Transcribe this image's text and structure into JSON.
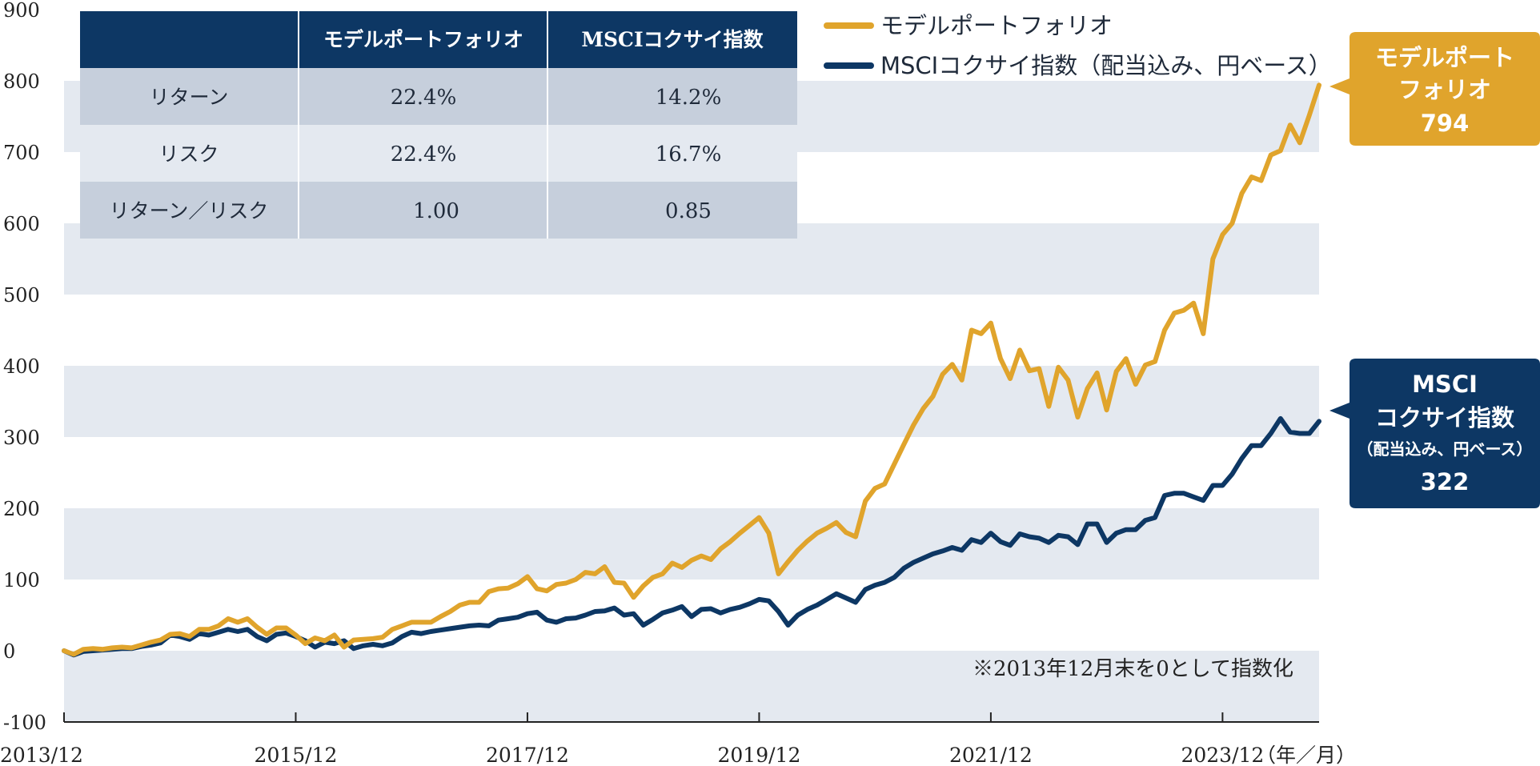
{
  "chart_data": {
    "type": "line",
    "ylim": [
      -100,
      900
    ],
    "yticks": [
      "-100",
      "0",
      "100",
      "200",
      "300",
      "400",
      "500",
      "600",
      "700",
      "800",
      "900"
    ],
    "xticks": [
      "2013/12",
      "2015/12",
      "2017/12",
      "2019/12",
      "2021/12",
      "2023/12"
    ],
    "xunit": "（年／月）",
    "grid": "horizontal bands",
    "note": "※2013年12月末を0として指数化",
    "colors": {
      "model": "#e0a42c",
      "msci": "#0d3764",
      "table_header": "#0d3764",
      "row_dark": "#c6cfdc",
      "row_light": "#e4e9f0",
      "band": "#e4e9f0"
    },
    "series": [
      {
        "name": "モデルポートフォリオ",
        "color": "#e0a42c",
        "end_value": "794",
        "values": [
          0,
          -5,
          2,
          3,
          2,
          4,
          5,
          4,
          8,
          12,
          15,
          23,
          24,
          20,
          30,
          30,
          35,
          45,
          40,
          45,
          33,
          23,
          32,
          32,
          22,
          10,
          18,
          14,
          22,
          5,
          15,
          16,
          17,
          19,
          30,
          35,
          40,
          40,
          40,
          48,
          55,
          64,
          68,
          68,
          83,
          87,
          88,
          94,
          104,
          87,
          84,
          93,
          95,
          100,
          110,
          108,
          118,
          96,
          95,
          75,
          91,
          103,
          108,
          123,
          117,
          127,
          133,
          128,
          143,
          153,
          165,
          176,
          187,
          165,
          108,
          125,
          141,
          154,
          165,
          172,
          180,
          166,
          160,
          210,
          228,
          234,
          262,
          290,
          317,
          340,
          357,
          388,
          402,
          380,
          450,
          445,
          460,
          410,
          382,
          422,
          393,
          396,
          343,
          398,
          380,
          328,
          368,
          390,
          338,
          392,
          410,
          374,
          401,
          406,
          450,
          474,
          478,
          488,
          445,
          550,
          584,
          600,
          642,
          665,
          660,
          696,
          702,
          738,
          713,
          752,
          794
        ]
      },
      {
        "name": "MSCIコクサイ指数（配当込み、円ベース）",
        "color": "#0d3764",
        "end_value": "322",
        "values": [
          0,
          -6,
          -1,
          0,
          1,
          2,
          3,
          3,
          6,
          8,
          11,
          22,
          20,
          16,
          24,
          22,
          26,
          30,
          27,
          30,
          20,
          14,
          23,
          25,
          20,
          14,
          5,
          12,
          10,
          14,
          3,
          7,
          9,
          7,
          11,
          20,
          26,
          24,
          27,
          29,
          31,
          33,
          35,
          36,
          35,
          43,
          45,
          47,
          52,
          54,
          43,
          40,
          45,
          46,
          50,
          55,
          56,
          60,
          50,
          52,
          36,
          44,
          53,
          57,
          62,
          48,
          58,
          59,
          53,
          58,
          61,
          66,
          72,
          70,
          55,
          36,
          50,
          58,
          64,
          72,
          80,
          74,
          68,
          86,
          92,
          96,
          103,
          116,
          124,
          130,
          136,
          140,
          145,
          141,
          156,
          152,
          165,
          153,
          148,
          164,
          160,
          158,
          152,
          162,
          160,
          149,
          178,
          178,
          152,
          165,
          170,
          170,
          183,
          187,
          218,
          221,
          221,
          216,
          211,
          232,
          232,
          248,
          270,
          288,
          288,
          305,
          326,
          307,
          305,
          305,
          322
        ]
      }
    ]
  },
  "legend": {
    "model_label": "モデルポートフォリオ",
    "msci_label": "MSCIコクサイ指数（配当込み、円ベース）"
  },
  "table": {
    "col1": "モデルポートフォリオ",
    "col2": "MSCIコクサイ指数",
    "rows": [
      {
        "label": "リターン",
        "model": "22.4%",
        "msci": "14.2%"
      },
      {
        "label": "リスク",
        "model": "22.4%",
        "msci": "16.7%"
      },
      {
        "label": "リターン／リスク",
        "model": "1.00",
        "msci": "0.85"
      }
    ]
  },
  "callouts": {
    "model_line1": "モデルポート",
    "model_line2": "フォリオ",
    "model_value": "794",
    "msci_line1": "MSCI",
    "msci_line2": "コクサイ指数",
    "msci_line3": "（配当込み、円ベース）",
    "msci_value": "322"
  }
}
